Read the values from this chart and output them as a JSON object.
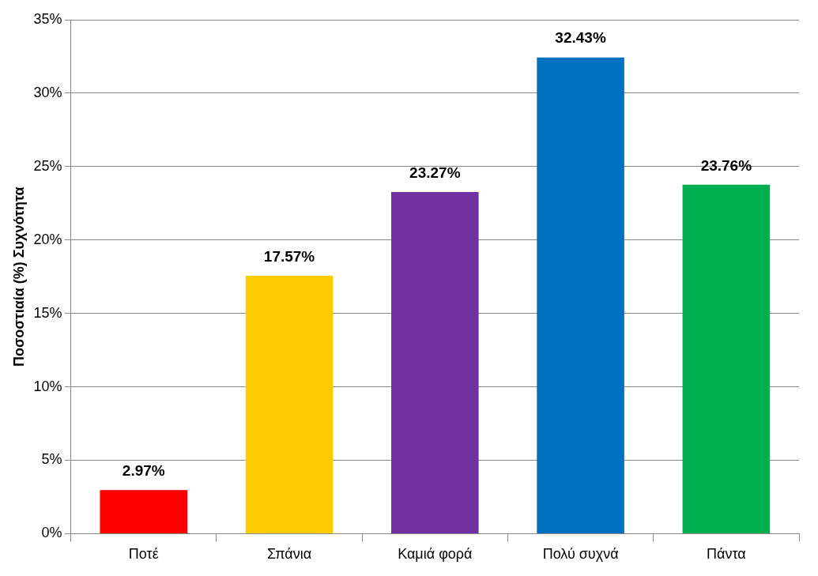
{
  "chart_data": {
    "type": "bar",
    "ylabel": "Ποσοστιαία (%) Συχνότητα",
    "categories": [
      "Ποτέ",
      "Σπάνια",
      "Καμιά φορά",
      "Πολύ συχνά",
      "Πάντα"
    ],
    "values": [
      2.97,
      17.57,
      23.27,
      32.43,
      23.76
    ],
    "colors": [
      "#ff0000",
      "#ffcc00",
      "#7030a0",
      "#0070c0",
      "#00b050"
    ],
    "value_labels": [
      "2.97%",
      "17.57%",
      "23.27%",
      "32.43%",
      "23.76%"
    ],
    "ylim": [
      0,
      35
    ],
    "yticks": [
      {
        "value": 0,
        "label": "0%"
      },
      {
        "value": 5,
        "label": "5%"
      },
      {
        "value": 10,
        "label": "10%"
      },
      {
        "value": 15,
        "label": "15%"
      },
      {
        "value": 20,
        "label": "20%"
      },
      {
        "value": 25,
        "label": "25%"
      },
      {
        "value": 30,
        "label": "30%"
      },
      {
        "value": 35,
        "label": "35%"
      }
    ],
    "grid": "y",
    "legend": false
  }
}
